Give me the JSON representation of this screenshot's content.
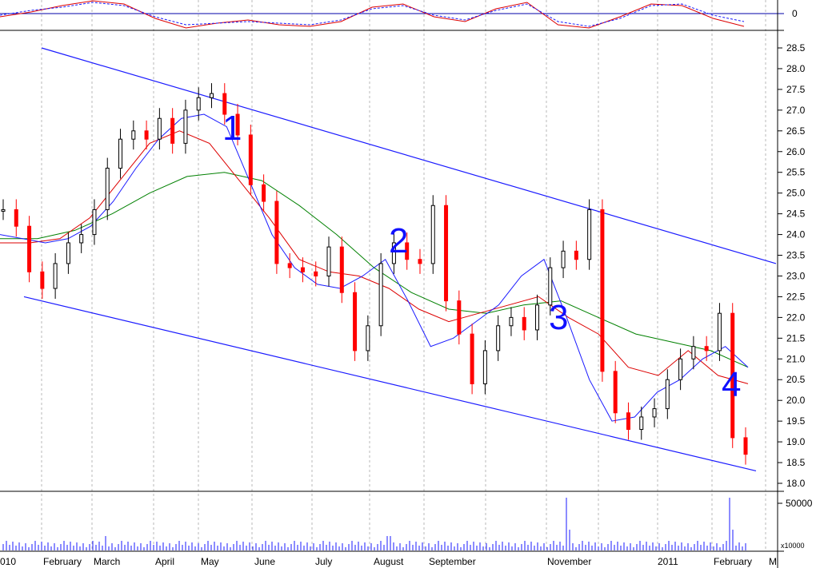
{
  "chart_data": {
    "type": "candlestick",
    "ylim": [
      18.0,
      28.5
    ],
    "yticks": [
      "28.5",
      "28.0",
      "27.5",
      "27.0",
      "26.5",
      "26.0",
      "25.5",
      "25.0",
      "24.5",
      "24.0",
      "23.5",
      "23.0",
      "22.5",
      "22.0",
      "21.5",
      "21.0",
      "20.5",
      "20.0",
      "19.5",
      "19.0",
      "18.5",
      "18.0"
    ],
    "xlabels": [
      "010",
      "February",
      "March",
      "April",
      "May",
      "June",
      "July",
      "August",
      "September",
      "November",
      "2011",
      "February",
      "M"
    ],
    "oscillator": {
      "zero_label": "0",
      "line1": [
        -0.2,
        0.1,
        0.5,
        0.8,
        0.6,
        -0.3,
        -0.9,
        -0.6,
        -0.4,
        -0.7,
        -0.8,
        -0.5,
        0.4,
        0.6,
        -0.2,
        -0.5,
        0.3,
        0.7,
        -0.7,
        -0.9,
        -0.2,
        0.6,
        0.5,
        -0.3,
        -0.8
      ],
      "line2": [
        -0.1,
        0.2,
        0.4,
        0.7,
        0.5,
        -0.2,
        -0.7,
        -0.6,
        -0.5,
        -0.6,
        -0.7,
        -0.4,
        0.3,
        0.5,
        -0.1,
        -0.4,
        0.2,
        0.6,
        -0.5,
        -0.8,
        -0.3,
        0.5,
        0.6,
        -0.1,
        -0.5
      ]
    },
    "volume": {
      "ticks": [
        "50000"
      ],
      "multiplier_label": "x10000"
    },
    "candles": [
      24.6,
      24.2,
      23.1,
      22.7,
      23.3,
      23.8,
      24.0,
      24.6,
      25.6,
      26.3,
      26.5,
      26.3,
      26.8,
      26.2,
      27.0,
      27.3,
      27.4,
      26.9,
      26.4,
      25.2,
      24.8,
      23.3,
      23.2,
      23.1,
      23.0,
      23.7,
      22.6,
      21.2,
      21.8,
      23.3,
      23.8,
      23.4,
      23.3,
      24.7,
      22.4,
      21.6,
      20.4,
      21.2,
      21.8,
      22.0,
      21.7,
      22.3,
      23.2,
      23.6,
      23.4,
      24.6,
      20.7,
      19.7,
      19.3,
      19.6,
      19.8,
      20.5,
      21.0,
      21.3,
      21.2,
      22.1,
      19.1,
      18.7
    ],
    "ma_blue": [
      24.0,
      23.9,
      23.8,
      23.9,
      24.2,
      24.8,
      25.6,
      26.3,
      26.8,
      26.9,
      26.6,
      25.3,
      24.0,
      23.2,
      22.8,
      22.7,
      23.0,
      23.4,
      22.4,
      21.3,
      21.5,
      21.9,
      22.3,
      23.0,
      23.4,
      22.0,
      20.5,
      19.5,
      19.6,
      20.2,
      20.5,
      21.0,
      21.3,
      20.8
    ],
    "ma_red": [
      23.8,
      23.8,
      23.9,
      24.4,
      25.3,
      26.2,
      26.5,
      26.2,
      25.3,
      24.4,
      23.4,
      23.1,
      23.0,
      22.7,
      22.2,
      21.9,
      22.1,
      22.3,
      22.5,
      22.0,
      21.6,
      20.8,
      20.6,
      21.2,
      20.6,
      20.4
    ],
    "ma_green": [
      23.9,
      23.9,
      24.1,
      24.5,
      25.0,
      25.4,
      25.5,
      25.3,
      24.7,
      24.0,
      23.2,
      22.6,
      22.2,
      22.1,
      22.3,
      22.4,
      22.0,
      21.6,
      21.4,
      21.2,
      20.8
    ],
    "channel_upper": [
      28.5,
      23.3
    ],
    "channel_lower": [
      22.5,
      18.3
    ],
    "annotations": [
      "1",
      "2",
      "3",
      "4"
    ]
  }
}
